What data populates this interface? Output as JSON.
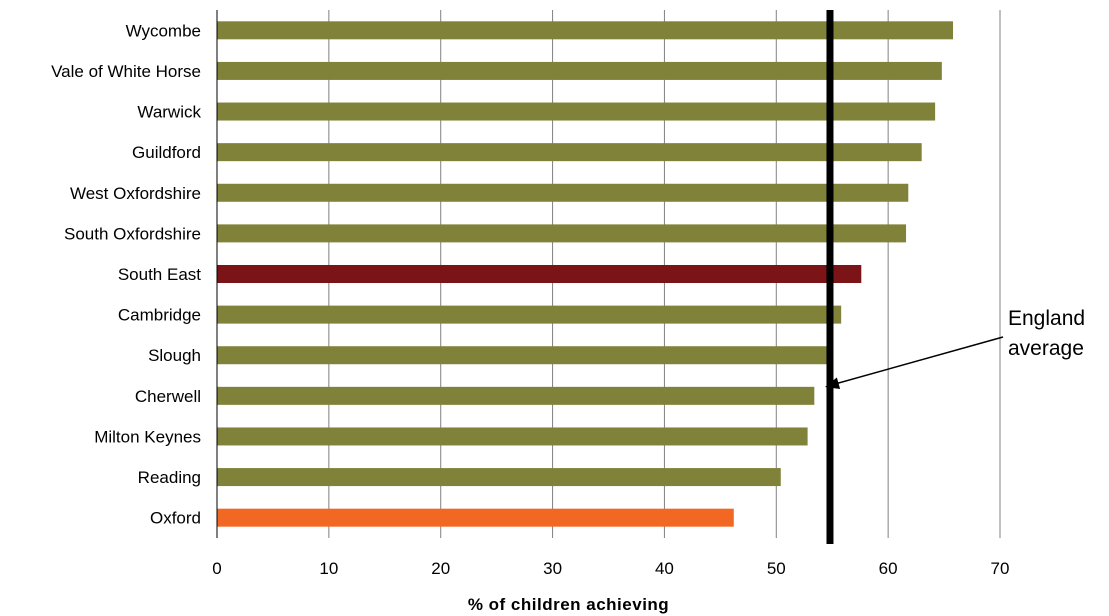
{
  "chart_data": {
    "type": "bar",
    "orientation": "horizontal",
    "categories": [
      "Wycombe",
      "Vale of White Horse",
      "Warwick",
      "Guildford",
      "West Oxfordshire",
      "South Oxfordshire",
      "South East",
      "Cambridge",
      "Slough",
      "Cherwell",
      "Milton Keynes",
      "Reading",
      "Oxford"
    ],
    "values": [
      65.8,
      64.8,
      64.2,
      63.0,
      61.8,
      61.6,
      57.6,
      55.8,
      54.5,
      53.4,
      52.8,
      50.4,
      46.2
    ],
    "colors": [
      "#7f8238",
      "#7f8238",
      "#7f8238",
      "#7f8238",
      "#7f8238",
      "#7f8238",
      "#7b1416",
      "#7f8238",
      "#7f8238",
      "#7f8238",
      "#7f8238",
      "#7f8238",
      "#f26822"
    ],
    "xlabel": "% of children achieving",
    "ylabel": "",
    "title": "",
    "xlim": [
      0,
      70
    ],
    "xticks": [
      0,
      10,
      20,
      30,
      40,
      50,
      60,
      70
    ],
    "grid": "vertical",
    "reference_line": {
      "value": 54.8,
      "color": "#000000"
    },
    "annotation": {
      "lines": [
        "England",
        "average"
      ]
    }
  }
}
